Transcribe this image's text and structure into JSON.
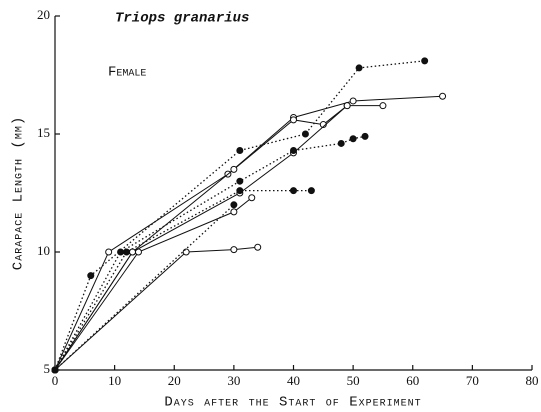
{
  "chart_data": {
    "type": "line",
    "title": "Triops granarius",
    "annotation": "Female",
    "xlabel": "Days after the Start of Experiment",
    "ylabel": "Carapace Length (mm)",
    "xlim": [
      0,
      80
    ],
    "xticks": [
      0,
      10,
      20,
      30,
      40,
      50,
      60,
      70,
      80
    ],
    "ylim": [
      5,
      20
    ],
    "yticks": [
      5,
      10,
      15,
      20
    ],
    "color": "#111111",
    "series": [
      {
        "style": "solid",
        "marker": "open",
        "x": [
          0,
          22,
          30,
          34
        ],
        "values": [
          5,
          10,
          10.1,
          10.2
        ]
      },
      {
        "style": "solid",
        "marker": "open",
        "x": [
          0,
          9,
          29,
          40,
          50,
          65
        ],
        "values": [
          5,
          10,
          13.3,
          15.7,
          16.4,
          16.6
        ]
      },
      {
        "style": "solid",
        "marker": "open",
        "x": [
          0,
          13,
          30,
          40,
          45,
          49,
          55
        ],
        "values": [
          5,
          10,
          13.5,
          15.6,
          15.4,
          16.2,
          16.2
        ]
      },
      {
        "style": "solid",
        "marker": "open",
        "x": [
          0,
          14,
          30,
          33
        ],
        "values": [
          5,
          10,
          11.7,
          12.3
        ]
      },
      {
        "style": "solid",
        "marker": "open",
        "x": [
          0,
          13,
          31,
          40,
          49
        ],
        "values": [
          5,
          10,
          12.5,
          14.2,
          16.2
        ]
      },
      {
        "style": "dotted",
        "marker": "filled",
        "x": [
          0,
          6,
          31,
          42,
          51,
          62
        ],
        "values": [
          5,
          9,
          14.3,
          15.0,
          17.8,
          18.1
        ]
      },
      {
        "style": "dotted",
        "marker": "filled",
        "x": [
          0,
          11,
          31,
          40,
          48,
          50,
          52
        ],
        "values": [
          5,
          10,
          13.0,
          14.3,
          14.6,
          14.8,
          14.9
        ]
      },
      {
        "style": "dotted",
        "marker": "filled",
        "x": [
          0,
          12,
          31,
          40,
          43
        ],
        "values": [
          5,
          10,
          12.6,
          12.6,
          12.6
        ]
      },
      {
        "style": "dotted",
        "marker": "filled",
        "x": [
          0,
          30
        ],
        "values": [
          5,
          12.0
        ]
      }
    ]
  }
}
